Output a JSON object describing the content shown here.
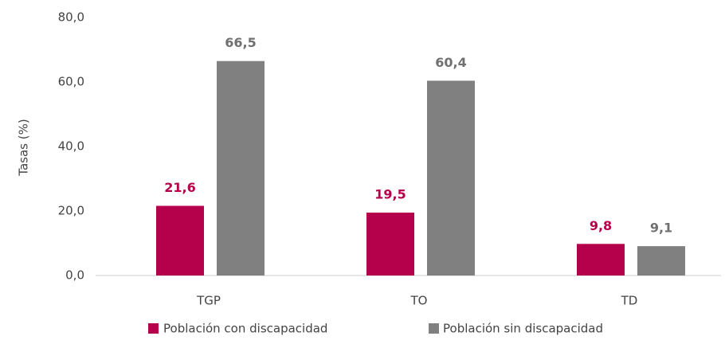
{
  "chart_data": {
    "type": "bar",
    "y_label": "Tasas (%)",
    "categories": [
      "TGP",
      "TO",
      "TD"
    ],
    "series": [
      {
        "name": "Población con discapacidad",
        "color": "#b5004b",
        "values": [
          21.6,
          19.5,
          9.8
        ],
        "value_labels": [
          "21,6",
          "19,5",
          "9,8"
        ]
      },
      {
        "name": "Población sin discapacidad",
        "color": "#808080",
        "values": [
          66.5,
          60.4,
          9.1
        ],
        "value_labels": [
          "66,5",
          "60,4",
          "9,1"
        ]
      }
    ],
    "ylim": [
      0,
      80
    ],
    "yticks": [
      {
        "value": 0,
        "label": "0,0"
      },
      {
        "value": 20,
        "label": "20,0"
      },
      {
        "value": 40,
        "label": "40,0"
      },
      {
        "value": 60,
        "label": "60,0"
      },
      {
        "value": 80,
        "label": "80,0"
      }
    ],
    "grid": false
  }
}
